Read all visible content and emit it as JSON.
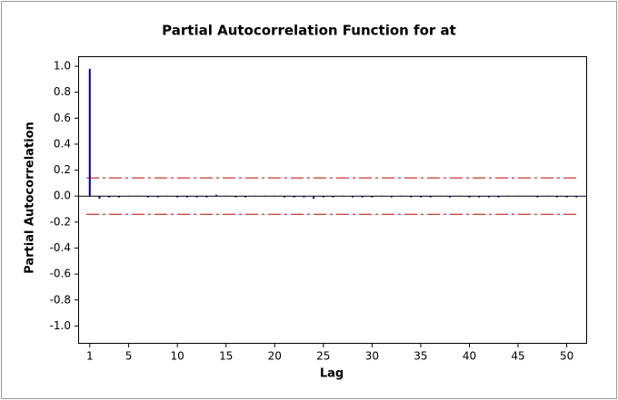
{
  "chart_data": {
    "type": "pacf",
    "title": "Partial Autocorrelation Function for at",
    "x_label": "Lag",
    "y_label": "Partial Autocorrelation",
    "x": [
      1,
      2,
      3,
      4,
      5,
      6,
      7,
      8,
      9,
      10,
      11,
      12,
      13,
      14,
      15,
      16,
      17,
      18,
      19,
      20,
      21,
      22,
      23,
      24,
      25,
      26,
      27,
      28,
      29,
      30,
      31,
      32,
      33,
      34,
      35,
      36,
      37,
      38,
      39,
      40,
      41,
      42,
      43,
      44,
      45,
      46,
      47,
      48,
      49,
      50,
      51
    ],
    "series": [
      {
        "name": "PACF",
        "color": "#00008b",
        "values": [
          0.98,
          -0.02,
          -0.01,
          -0.01,
          0,
          0,
          -0.01,
          -0.01,
          0,
          -0.01,
          -0.01,
          -0.01,
          -0.01,
          0.01,
          0,
          -0.01,
          -0.01,
          0,
          0,
          0,
          -0.01,
          -0.01,
          -0.01,
          -0.02,
          -0.01,
          -0.01,
          0,
          -0.01,
          -0.01,
          -0.01,
          0,
          -0.01,
          0,
          -0.01,
          -0.01,
          -0.01,
          0,
          -0.01,
          0,
          -0.01,
          -0.01,
          -0.01,
          -0.01,
          0,
          0,
          0,
          -0.01,
          0,
          -0.01,
          -0.01,
          -0.01
        ]
      }
    ],
    "limits": {
      "upper": 0.14,
      "lower": -0.14,
      "color": "#c00000"
    },
    "xlim": [
      -0.1,
      52
    ],
    "xticks": [
      1,
      5,
      10,
      15,
      20,
      25,
      30,
      35,
      40,
      45,
      50
    ],
    "ylim": [
      -1.13,
      1.07
    ],
    "yticks": [
      {
        "value": 1,
        "label": "1.0"
      },
      0.8,
      0.6,
      0.4,
      0.2,
      {
        "value": 0,
        "label": "0.0"
      },
      -0.2,
      -0.4,
      -0.6,
      -0.8,
      {
        "value": -1,
        "label": "-1.0"
      }
    ]
  }
}
